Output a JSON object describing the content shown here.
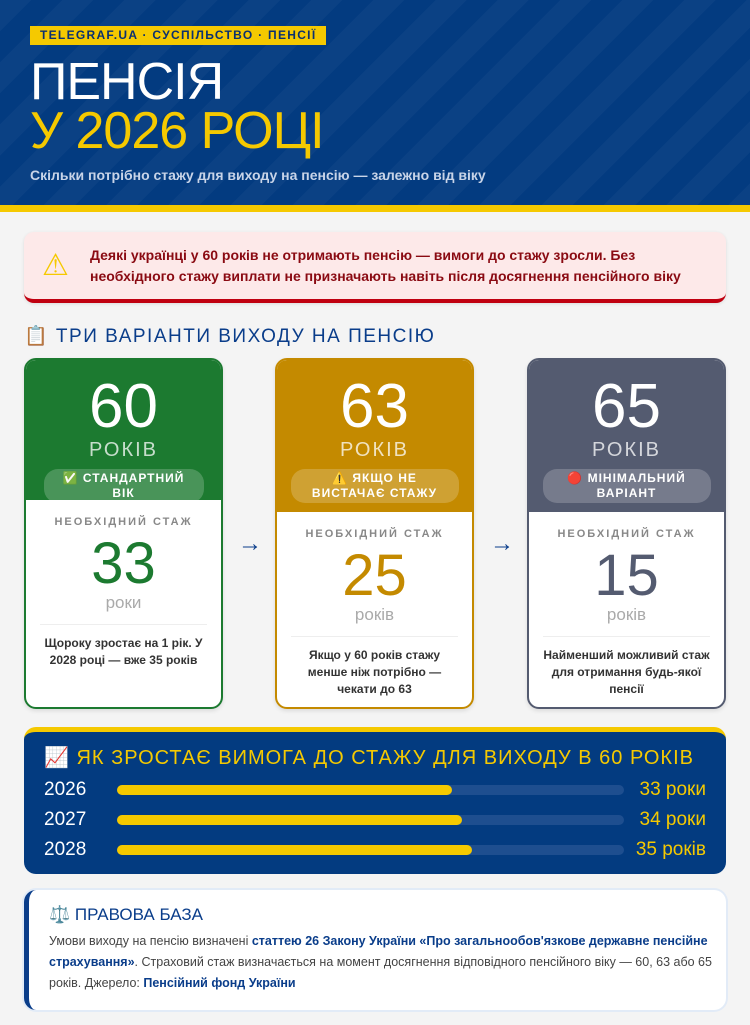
{
  "header": {
    "tag": "TELEGRAF.UA · СУСПІЛЬСТВО · ПЕНСІЇ",
    "title_line1": "ПЕНСІЯ",
    "title_line2": "У 2026 РОЦІ",
    "subtitle": "Скільки потрібно стажу для виходу на пенсію — залежно від віку"
  },
  "alert": {
    "icon": "warning-icon",
    "text": "Деякі українці у 60 років не отримають пенсію — вимоги до стажу зросли. Без необхідного стажу виплати не призначають навіть після досягнення пенсійного віку"
  },
  "section_title": "📋 ТРИ ВАРІАНТИ ВИХОДУ НА ПЕНСІЮ",
  "cards": [
    {
      "age": "60",
      "age_unit": "РОКІВ",
      "badge": "✅ СТАНДАРТНИЙ ВІК",
      "label": "НЕОБХІДНИЙ СТАЖ",
      "value": "33",
      "unit": "роки",
      "desc": "Щороку зростає на 1 рік. У 2028 році — вже 35 років",
      "color": "#1c7a30"
    },
    {
      "age": "63",
      "age_unit": "РОКІВ",
      "badge": "⚠️ ЯКЩО НЕ ВИСТАЧАЄ СТАЖУ",
      "label": "НЕОБХІДНИЙ СТАЖ",
      "value": "25",
      "unit": "років",
      "desc": "Якщо у 60 років стажу менше ніж потрібно — чекати до 63",
      "color": "#c48a00"
    },
    {
      "age": "65",
      "age_unit": "РОКІВ",
      "badge": "🔴 МІНІМАЛЬНИЙ ВАРІАНТ",
      "label": "НЕОБХІДНИЙ СТАЖ",
      "value": "15",
      "unit": "років",
      "desc": "Найменший можливий стаж для отримання будь-якої пенсії",
      "color": "#545b70"
    }
  ],
  "chart_data": {
    "type": "bar",
    "title": "📈 ЯК ЗРОСТАЄ ВИМОГА ДО СТАЖУ ДЛЯ ВИХОДУ В 60 РОКІВ",
    "categories": [
      "2026",
      "2027",
      "2028"
    ],
    "values": [
      33,
      34,
      35
    ],
    "value_labels": [
      "33 роки",
      "34 роки",
      "35 років"
    ],
    "xlim": [
      0,
      50
    ]
  },
  "legal": {
    "title": "⚖️ ПРАВОВА БАЗА",
    "text1": "Умови виходу на пенсію визначені ",
    "link1": "статтею 26 Закону України «Про загальнообов'язкове державне пенсійне страхування»",
    "text2": ". Страховий стаж визначається на момент досягнення відповідного пенсійного віку — 60, 63 або 65 років. Джерело: ",
    "link2": "Пенсійний фонд України"
  }
}
